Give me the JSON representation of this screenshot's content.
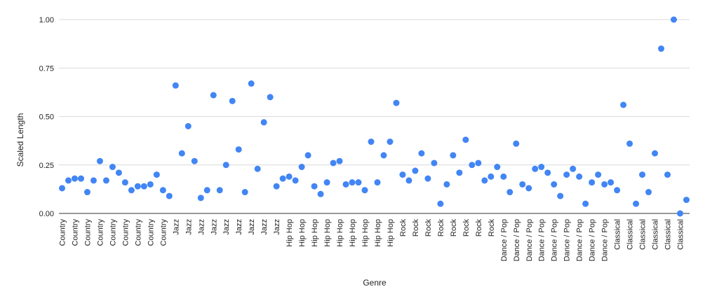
{
  "chart_data": {
    "type": "scatter",
    "title": "",
    "xlabel": "Genre",
    "ylabel": "Scaled Length",
    "ylim": [
      0,
      1.0
    ],
    "yticks": [
      "0.00",
      "0.25",
      "0.50",
      "0.75",
      "1.00"
    ],
    "grid": true,
    "legend": "none",
    "point_color": "#4285f4",
    "series": [
      {
        "points": [
          {
            "genre": "Country",
            "value": 0.13
          },
          {
            "genre": "Country",
            "value": 0.17
          },
          {
            "genre": "Country",
            "value": 0.18
          },
          {
            "genre": "Country",
            "value": 0.18
          },
          {
            "genre": "Country",
            "value": 0.11
          },
          {
            "genre": "Country",
            "value": 0.17
          },
          {
            "genre": "Country",
            "value": 0.27
          },
          {
            "genre": "Country",
            "value": 0.17
          },
          {
            "genre": "Country",
            "value": 0.24
          },
          {
            "genre": "Country",
            "value": 0.21
          },
          {
            "genre": "Country",
            "value": 0.16
          },
          {
            "genre": "Country",
            "value": 0.12
          },
          {
            "genre": "Country",
            "value": 0.14
          },
          {
            "genre": "Country",
            "value": 0.14
          },
          {
            "genre": "Country",
            "value": 0.15
          },
          {
            "genre": "Country",
            "value": 0.2
          },
          {
            "genre": "Country",
            "value": 0.12
          },
          {
            "genre": "Country",
            "value": 0.09
          },
          {
            "genre": "Jazz",
            "value": 0.66
          },
          {
            "genre": "Jazz",
            "value": 0.31
          },
          {
            "genre": "Jazz",
            "value": 0.45
          },
          {
            "genre": "Jazz",
            "value": 0.27
          },
          {
            "genre": "Jazz",
            "value": 0.08
          },
          {
            "genre": "Jazz",
            "value": 0.12
          },
          {
            "genre": "Jazz",
            "value": 0.61
          },
          {
            "genre": "Jazz",
            "value": 0.12
          },
          {
            "genre": "Jazz",
            "value": 0.25
          },
          {
            "genre": "Jazz",
            "value": 0.58
          },
          {
            "genre": "Jazz",
            "value": 0.33
          },
          {
            "genre": "Jazz",
            "value": 0.11
          },
          {
            "genre": "Jazz",
            "value": 0.67
          },
          {
            "genre": "Jazz",
            "value": 0.23
          },
          {
            "genre": "Jazz",
            "value": 0.47
          },
          {
            "genre": "Jazz",
            "value": 0.6
          },
          {
            "genre": "Jazz",
            "value": 0.14
          },
          {
            "genre": "Hip Hop",
            "value": 0.18
          },
          {
            "genre": "Hip Hop",
            "value": 0.19
          },
          {
            "genre": "Hip Hop",
            "value": 0.17
          },
          {
            "genre": "Hip Hop",
            "value": 0.24
          },
          {
            "genre": "Hip Hop",
            "value": 0.3
          },
          {
            "genre": "Hip Hop",
            "value": 0.14
          },
          {
            "genre": "Hip Hop",
            "value": 0.1
          },
          {
            "genre": "Hip Hop",
            "value": 0.16
          },
          {
            "genre": "Hip Hop",
            "value": 0.26
          },
          {
            "genre": "Hip Hop",
            "value": 0.27
          },
          {
            "genre": "Hip Hop",
            "value": 0.15
          },
          {
            "genre": "Hip Hop",
            "value": 0.16
          },
          {
            "genre": "Hip Hop",
            "value": 0.16
          },
          {
            "genre": "Hip Hop",
            "value": 0.12
          },
          {
            "genre": "Hip Hop",
            "value": 0.37
          },
          {
            "genre": "Hip Hop",
            "value": 0.16
          },
          {
            "genre": "Hip Hop",
            "value": 0.3
          },
          {
            "genre": "Hip Hop",
            "value": 0.37
          },
          {
            "genre": "Hip Hop",
            "value": 0.57
          },
          {
            "genre": "Rock",
            "value": 0.2
          },
          {
            "genre": "Rock",
            "value": 0.17
          },
          {
            "genre": "Rock",
            "value": 0.22
          },
          {
            "genre": "Rock",
            "value": 0.31
          },
          {
            "genre": "Rock",
            "value": 0.18
          },
          {
            "genre": "Rock",
            "value": 0.26
          },
          {
            "genre": "Rock",
            "value": 0.05
          },
          {
            "genre": "Rock",
            "value": 0.15
          },
          {
            "genre": "Rock",
            "value": 0.3
          },
          {
            "genre": "Rock",
            "value": 0.21
          },
          {
            "genre": "Rock",
            "value": 0.38
          },
          {
            "genre": "Rock",
            "value": 0.25
          },
          {
            "genre": "Rock",
            "value": 0.26
          },
          {
            "genre": "Rock",
            "value": 0.17
          },
          {
            "genre": "Rock",
            "value": 0.19
          },
          {
            "genre": "Rock",
            "value": 0.24
          },
          {
            "genre": "Dance / Pop",
            "value": 0.19
          },
          {
            "genre": "Dance / Pop",
            "value": 0.11
          },
          {
            "genre": "Dance / Pop",
            "value": 0.36
          },
          {
            "genre": "Dance / Pop",
            "value": 0.15
          },
          {
            "genre": "Dance / Pop",
            "value": 0.13
          },
          {
            "genre": "Dance / Pop",
            "value": 0.23
          },
          {
            "genre": "Dance / Pop",
            "value": 0.24
          },
          {
            "genre": "Dance / Pop",
            "value": 0.21
          },
          {
            "genre": "Dance / Pop",
            "value": 0.15
          },
          {
            "genre": "Dance / Pop",
            "value": 0.09
          },
          {
            "genre": "Dance / Pop",
            "value": 0.2
          },
          {
            "genre": "Dance / Pop",
            "value": 0.23
          },
          {
            "genre": "Dance / Pop",
            "value": 0.19
          },
          {
            "genre": "Dance / Pop",
            "value": 0.05
          },
          {
            "genre": "Dance / Pop",
            "value": 0.16
          },
          {
            "genre": "Dance / Pop",
            "value": 0.2
          },
          {
            "genre": "Dance / Pop",
            "value": 0.15
          },
          {
            "genre": "Dance / Pop",
            "value": 0.16
          },
          {
            "genre": "Classical",
            "value": 0.12
          },
          {
            "genre": "Classical",
            "value": 0.56
          },
          {
            "genre": "Classical",
            "value": 0.36
          },
          {
            "genre": "Classical",
            "value": 0.05
          },
          {
            "genre": "Classical",
            "value": 0.2
          },
          {
            "genre": "Classical",
            "value": 0.11
          },
          {
            "genre": "Classical",
            "value": 0.31
          },
          {
            "genre": "Classical",
            "value": 0.85
          },
          {
            "genre": "Classical",
            "value": 0.2
          },
          {
            "genre": "Classical",
            "value": 1.0
          },
          {
            "genre": "Classical",
            "value": 0.0
          },
          {
            "genre": "Classical",
            "value": 0.07
          }
        ]
      }
    ]
  }
}
